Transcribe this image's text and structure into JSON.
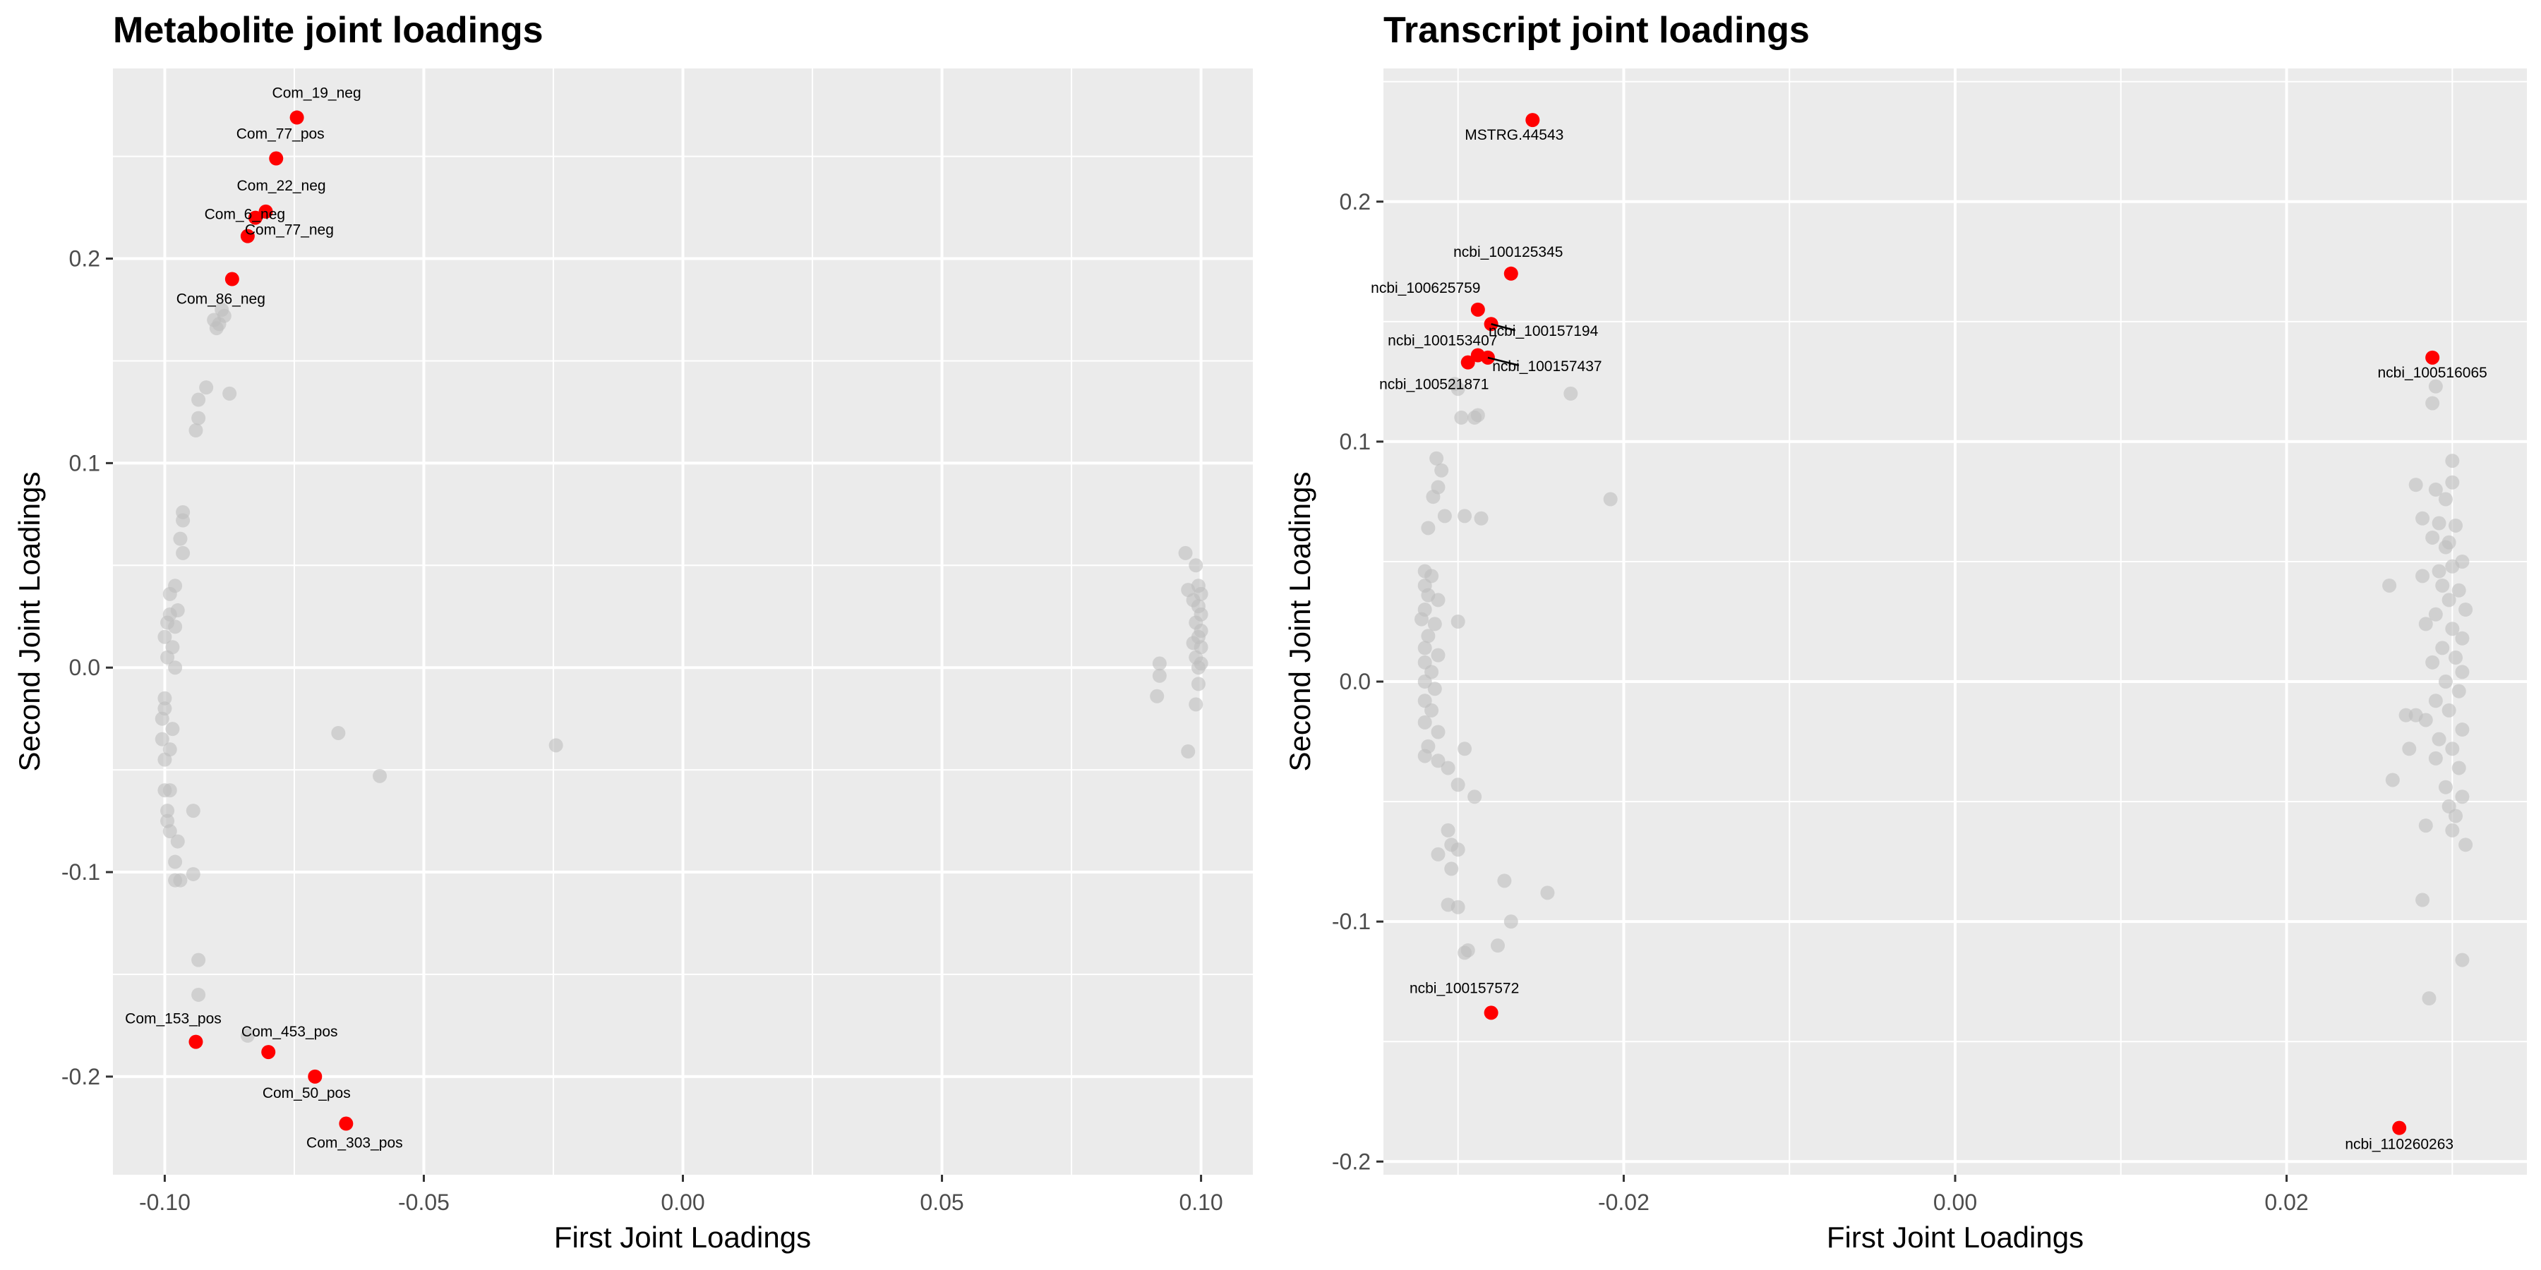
{
  "colors": {
    "panel_background": "#ebebeb",
    "grid": "#ffffff",
    "highlight": "#ff0000",
    "background_points": "#bebebe"
  },
  "chart_data": [
    {
      "type": "scatter",
      "title": "Metabolite joint loadings",
      "xlabel": "First Joint Loadings",
      "ylabel": "Second Joint Loadings",
      "xlim": [
        -0.11,
        0.11
      ],
      "ylim": [
        -0.248,
        0.293
      ],
      "xticks": [
        -0.1,
        -0.05,
        0.0,
        0.05,
        0.1
      ],
      "xtick_labels": [
        "-0.10",
        "-0.05",
        "0.00",
        "0.05",
        "0.10"
      ],
      "yticks": [
        -0.2,
        -0.1,
        0.0,
        0.1,
        0.2
      ],
      "ytick_labels": [
        "-0.2",
        "-0.1",
        "0.0",
        "0.1",
        "0.2"
      ],
      "grid": true,
      "highlighted": [
        {
          "label": "Com_19_neg",
          "x": -0.0745,
          "y": 0.269
        },
        {
          "label": "Com_77_pos",
          "x": -0.0785,
          "y": 0.249
        },
        {
          "label": "Com_22_neg",
          "x": -0.0805,
          "y": 0.223
        },
        {
          "label": "Com_77_neg",
          "x": -0.0825,
          "y": 0.22
        },
        {
          "label": "Com_6_neg",
          "x": -0.084,
          "y": 0.211
        },
        {
          "label": "Com_86_neg",
          "x": -0.087,
          "y": 0.19
        },
        {
          "label": "Com_153_pos",
          "x": -0.094,
          "y": -0.183
        },
        {
          "label": "Com_453_pos",
          "x": -0.08,
          "y": -0.188
        },
        {
          "label": "Com_50_pos",
          "x": -0.071,
          "y": -0.2
        },
        {
          "label": "Com_303_pos",
          "x": -0.065,
          "y": -0.223
        }
      ],
      "background": [
        [
          -0.0935,
          0.131
        ],
        [
          -0.0935,
          0.122
        ],
        [
          -0.094,
          0.116
        ],
        [
          -0.092,
          0.137
        ],
        [
          -0.0875,
          0.134
        ],
        [
          -0.089,
          0.175
        ],
        [
          -0.0885,
          0.172
        ],
        [
          -0.0895,
          0.168
        ],
        [
          -0.09,
          0.166
        ],
        [
          -0.0905,
          0.17
        ],
        [
          -0.0965,
          0.076
        ],
        [
          -0.0965,
          0.072
        ],
        [
          -0.0965,
          0.056
        ],
        [
          -0.097,
          0.063
        ],
        [
          -0.098,
          0.04
        ],
        [
          -0.099,
          0.036
        ],
        [
          -0.0975,
          0.028
        ],
        [
          -0.098,
          0.02
        ],
        [
          -0.099,
          0.026
        ],
        [
          -0.0995,
          0.022
        ],
        [
          -0.1,
          0.015
        ],
        [
          -0.0985,
          0.01
        ],
        [
          -0.0995,
          0.005
        ],
        [
          -0.098,
          0.0
        ],
        [
          -0.1,
          -0.015
        ],
        [
          -0.1,
          -0.02
        ],
        [
          -0.1005,
          -0.025
        ],
        [
          -0.0985,
          -0.03
        ],
        [
          -0.1005,
          -0.035
        ],
        [
          -0.099,
          -0.04
        ],
        [
          -0.1,
          -0.045
        ],
        [
          -0.1,
          -0.06
        ],
        [
          -0.099,
          -0.06
        ],
        [
          -0.0995,
          -0.07
        ],
        [
          -0.0995,
          -0.075
        ],
        [
          -0.099,
          -0.08
        ],
        [
          -0.0975,
          -0.085
        ],
        [
          -0.098,
          -0.095
        ],
        [
          -0.098,
          -0.104
        ],
        [
          -0.097,
          -0.104
        ],
        [
          -0.0945,
          -0.101
        ],
        [
          -0.0945,
          -0.07
        ],
        [
          -0.0935,
          -0.143
        ],
        [
          -0.0935,
          -0.16
        ],
        [
          -0.084,
          -0.18
        ],
        [
          -0.0665,
          -0.032
        ],
        [
          -0.0585,
          -0.053
        ],
        [
          -0.0245,
          -0.038
        ],
        [
          0.097,
          0.056
        ],
        [
          0.099,
          0.05
        ],
        [
          0.0995,
          0.04
        ],
        [
          0.0975,
          0.038
        ],
        [
          0.1,
          0.036
        ],
        [
          0.0985,
          0.033
        ],
        [
          0.0995,
          0.03
        ],
        [
          0.1,
          0.026
        ],
        [
          0.099,
          0.022
        ],
        [
          0.1,
          0.018
        ],
        [
          0.0995,
          0.015
        ],
        [
          0.0985,
          0.012
        ],
        [
          0.1,
          0.01
        ],
        [
          0.099,
          0.005
        ],
        [
          0.1,
          0.002
        ],
        [
          0.0995,
          0.0
        ],
        [
          0.092,
          0.002
        ],
        [
          0.092,
          -0.004
        ],
        [
          0.0915,
          -0.014
        ],
        [
          0.0995,
          -0.008
        ],
        [
          0.099,
          -0.018
        ],
        [
          0.0975,
          -0.041
        ]
      ]
    },
    {
      "type": "scatter",
      "title": "Transcript joint loadings",
      "xlabel": "First Joint Loadings",
      "ylabel": "Second Joint Loadings",
      "xlim": [
        -0.0345,
        0.0345
      ],
      "ylim": [
        -0.2055,
        0.2555
      ],
      "xticks": [
        -0.02,
        0.0,
        0.02
      ],
      "xtick_labels": [
        "-0.02",
        "0.00",
        "0.02"
      ],
      "yticks": [
        -0.2,
        -0.1,
        0.0,
        0.1,
        0.2
      ],
      "ytick_labels": [
        "-0.2",
        "-0.1",
        "0.0",
        "0.1",
        "0.2"
      ],
      "grid": true,
      "highlighted": [
        {
          "label": "MSTRG.44543",
          "x": -0.0255,
          "y": 0.234
        },
        {
          "label": "ncbi_100125345",
          "x": -0.0268,
          "y": 0.17
        },
        {
          "label": "ncbi_100625759",
          "x": -0.0288,
          "y": 0.155
        },
        {
          "label": "ncbi_100157194",
          "x": -0.028,
          "y": 0.149
        },
        {
          "label": "ncbi_100153407",
          "x": -0.0288,
          "y": 0.136
        },
        {
          "label": "ncbi_100157437",
          "x": -0.0282,
          "y": 0.135
        },
        {
          "label": "ncbi_100521871",
          "x": -0.0294,
          "y": 0.133
        },
        {
          "label": "ncbi_100516065",
          "x": 0.0288,
          "y": 0.135
        },
        {
          "label": "ncbi_100157572",
          "x": -0.028,
          "y": -0.138
        },
        {
          "label": "ncbi_110260263",
          "x": 0.0268,
          "y": -0.186
        }
      ],
      "background": [
        [
          -0.03,
          0.122
        ],
        [
          -0.0302,
          0.124
        ],
        [
          -0.0288,
          0.111
        ],
        [
          -0.0298,
          0.11
        ],
        [
          -0.029,
          0.11
        ],
        [
          -0.0232,
          0.12
        ],
        [
          -0.0208,
          0.076
        ],
        [
          -0.0313,
          0.093
        ],
        [
          -0.031,
          0.088
        ],
        [
          -0.0312,
          0.081
        ],
        [
          -0.0315,
          0.077
        ],
        [
          -0.0308,
          0.069
        ],
        [
          -0.0296,
          0.069
        ],
        [
          -0.0286,
          0.068
        ],
        [
          -0.0318,
          0.064
        ],
        [
          -0.032,
          0.046
        ],
        [
          -0.0316,
          0.044
        ],
        [
          -0.032,
          0.04
        ],
        [
          -0.0318,
          0.036
        ],
        [
          -0.0312,
          0.034
        ],
        [
          -0.032,
          0.03
        ],
        [
          -0.0322,
          0.026
        ],
        [
          -0.0314,
          0.024
        ],
        [
          -0.0318,
          0.019
        ],
        [
          -0.032,
          0.014
        ],
        [
          -0.0312,
          0.011
        ],
        [
          -0.032,
          0.008
        ],
        [
          -0.0316,
          0.004
        ],
        [
          -0.032,
          0.0
        ],
        [
          -0.0314,
          -0.003
        ],
        [
          -0.032,
          -0.008
        ],
        [
          -0.0316,
          -0.012
        ],
        [
          -0.032,
          -0.017
        ],
        [
          -0.0312,
          -0.021
        ],
        [
          -0.0318,
          -0.027
        ],
        [
          -0.032,
          -0.031
        ],
        [
          -0.0312,
          -0.033
        ],
        [
          -0.0306,
          -0.036
        ],
        [
          -0.03,
          -0.043
        ],
        [
          -0.029,
          -0.048
        ],
        [
          -0.0296,
          -0.028
        ],
        [
          -0.03,
          0.025
        ],
        [
          -0.0306,
          -0.062
        ],
        [
          -0.0304,
          -0.068
        ],
        [
          -0.03,
          -0.07
        ],
        [
          -0.0312,
          -0.072
        ],
        [
          -0.0304,
          -0.078
        ],
        [
          -0.0306,
          -0.093
        ],
        [
          -0.03,
          -0.094
        ],
        [
          -0.0296,
          -0.113
        ],
        [
          -0.0294,
          -0.112
        ],
        [
          -0.0276,
          -0.11
        ],
        [
          -0.0268,
          -0.1
        ],
        [
          -0.0272,
          -0.083
        ],
        [
          -0.0246,
          -0.088
        ],
        [
          0.03,
          0.092
        ],
        [
          0.03,
          0.083
        ],
        [
          0.0278,
          0.082
        ],
        [
          0.029,
          0.08
        ],
        [
          0.0282,
          0.068
        ],
        [
          0.0292,
          0.066
        ],
        [
          0.0302,
          0.065
        ],
        [
          0.0288,
          0.06
        ],
        [
          0.0298,
          0.058
        ],
        [
          0.0296,
          0.056
        ],
        [
          0.0306,
          0.05
        ],
        [
          0.03,
          0.048
        ],
        [
          0.0292,
          0.046
        ],
        [
          0.0262,
          0.04
        ],
        [
          0.0282,
          0.044
        ],
        [
          0.0294,
          0.04
        ],
        [
          0.0304,
          0.038
        ],
        [
          0.0298,
          0.034
        ],
        [
          0.0308,
          0.03
        ],
        [
          0.029,
          0.028
        ],
        [
          0.0284,
          0.024
        ],
        [
          0.03,
          0.022
        ],
        [
          0.0306,
          0.018
        ],
        [
          0.0294,
          0.014
        ],
        [
          0.0302,
          0.01
        ],
        [
          0.0288,
          0.008
        ],
        [
          0.0306,
          0.004
        ],
        [
          0.0296,
          0.0
        ],
        [
          0.0304,
          -0.004
        ],
        [
          0.029,
          -0.008
        ],
        [
          0.0298,
          -0.012
        ],
        [
          0.0272,
          -0.014
        ],
        [
          0.0278,
          -0.014
        ],
        [
          0.0284,
          -0.016
        ],
        [
          0.0306,
          -0.02
        ],
        [
          0.0292,
          -0.024
        ],
        [
          0.03,
          -0.028
        ],
        [
          0.0274,
          -0.028
        ],
        [
          0.029,
          -0.032
        ],
        [
          0.0304,
          -0.036
        ],
        [
          0.0264,
          -0.041
        ],
        [
          0.0296,
          -0.044
        ],
        [
          0.0306,
          -0.048
        ],
        [
          0.0298,
          -0.052
        ],
        [
          0.0302,
          -0.056
        ],
        [
          0.0284,
          -0.06
        ],
        [
          0.03,
          -0.062
        ],
        [
          0.0308,
          -0.068
        ],
        [
          0.0282,
          -0.091
        ],
        [
          0.0286,
          -0.132
        ],
        [
          0.0306,
          -0.116
        ],
        [
          0.0288,
          0.116
        ],
        [
          0.029,
          0.123
        ],
        [
          0.0296,
          0.076
        ]
      ]
    }
  ]
}
